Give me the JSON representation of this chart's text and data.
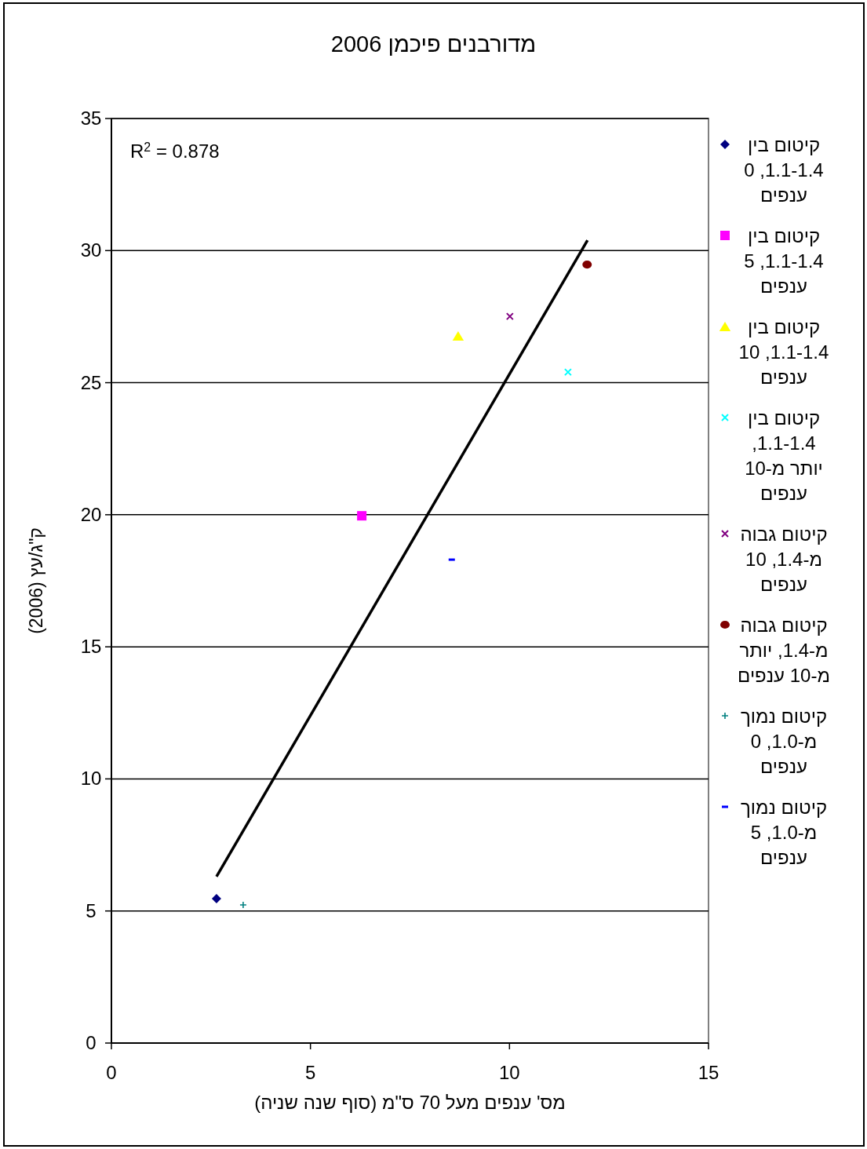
{
  "chart_data": {
    "type": "scatter",
    "title": "מדורבנים פיכמן 2006",
    "xlabel": "מס' ענפים מעל 70 ס\"מ (סוף שנה שניה)",
    "ylabel": "ק\"ג/עץ (2006)",
    "annotations": [
      "R$^{2}$ = 0.878"
    ],
    "xlim": [
      0,
      15
    ],
    "ylim": [
      0,
      35
    ],
    "xticks": [
      0,
      5,
      10,
      15
    ],
    "yticks": [
      0,
      5,
      10,
      15,
      20,
      25,
      30,
      35
    ],
    "grid": "y",
    "legend": "right",
    "series": [
      {
        "name": "קיטום בין 1.1-1.4, 0 ענפים",
        "color": "#000080",
        "marker": "diamond",
        "x": [
          2.64
        ],
        "values": [
          5.47
        ]
      },
      {
        "name": "קיטום בין 1.1-1.4, 5 ענפים",
        "color": "#ff00ff",
        "marker": "square",
        "x": [
          6.29
        ],
        "values": [
          19.96
        ]
      },
      {
        "name": "קיטום בין 1.1-1.4, 10 ענפים",
        "color": "#ffff00",
        "marker": "triangle",
        "x": [
          8.71
        ],
        "values": [
          26.77
        ]
      },
      {
        "name": "קיטום בין 1.1-1.4, יותר מ-10 ענפים",
        "color": "#00ffff",
        "marker": "cross",
        "x": [
          11.47
        ],
        "values": [
          25.4
        ]
      },
      {
        "name": "קיטום גבוה מ-1.4, 10 ענפים",
        "color": "#800080",
        "marker": "cross",
        "x": [
          10.01
        ],
        "values": [
          27.51
        ]
      },
      {
        "name": "קיטום גבוה מ-1.4, יותר מ-10 ענפים",
        "color": "#800000",
        "marker": "circle",
        "x": [
          11.95
        ],
        "values": [
          29.47
        ]
      },
      {
        "name": "קיטום נמוך מ-1.0, 0 ענפים",
        "color": "#008080",
        "marker": "plus",
        "x": [
          3.31
        ],
        "values": [
          5.23
        ]
      },
      {
        "name": "קיטום נמוך מ-1.0, 5 ענפים",
        "color": "#0000ff",
        "x": [
          8.55
        ],
        "values": [
          18.3
        ]
      },
      {
        "type": "line",
        "color": "#000000",
        "marker": "none",
        "x": [
          2.64,
          11.96
        ],
        "values": [
          6.3,
          30.39
        ]
      }
    ]
  }
}
